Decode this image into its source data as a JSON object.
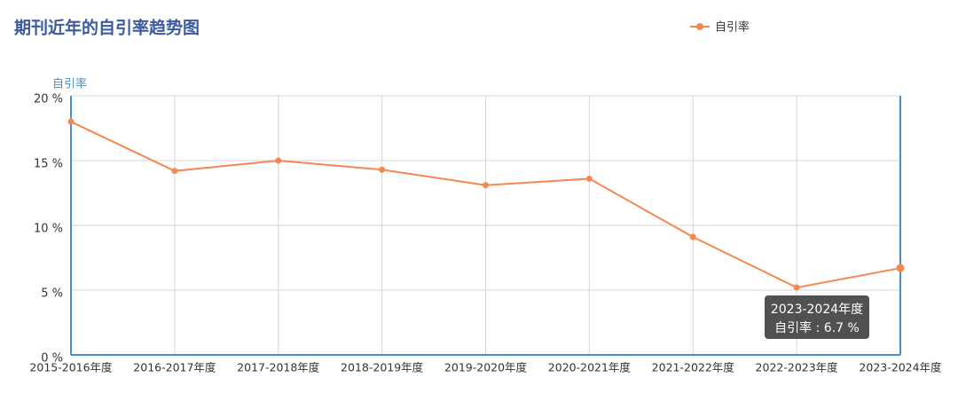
{
  "chart_data": {
    "type": "line",
    "title": "期刊近年的自引率趋势图",
    "y_label": "自引率",
    "categories": [
      "2015-2016年度",
      "2016-2017年度",
      "2017-2018年度",
      "2018-2019年度",
      "2019-2020年度",
      "2020-2021年度",
      "2021-2022年度",
      "2022-2023年度",
      "2023-2024年度"
    ],
    "series": [
      {
        "name": "自引率",
        "color": "#f5874f",
        "values": [
          18.0,
          14.2,
          15.0,
          14.3,
          13.1,
          13.6,
          9.1,
          5.2,
          6.7
        ]
      }
    ],
    "ylim": [
      0,
      20
    ],
    "yticks": [
      {
        "value": 0,
        "label": "0 %"
      },
      {
        "value": 5,
        "label": "5 %"
      },
      {
        "value": 10,
        "label": "10 %"
      },
      {
        "value": 15,
        "label": "15 %"
      },
      {
        "value": 20,
        "label": "20 %"
      }
    ],
    "grid": true,
    "tooltip_label": "自引率 : 6.7 %"
  }
}
